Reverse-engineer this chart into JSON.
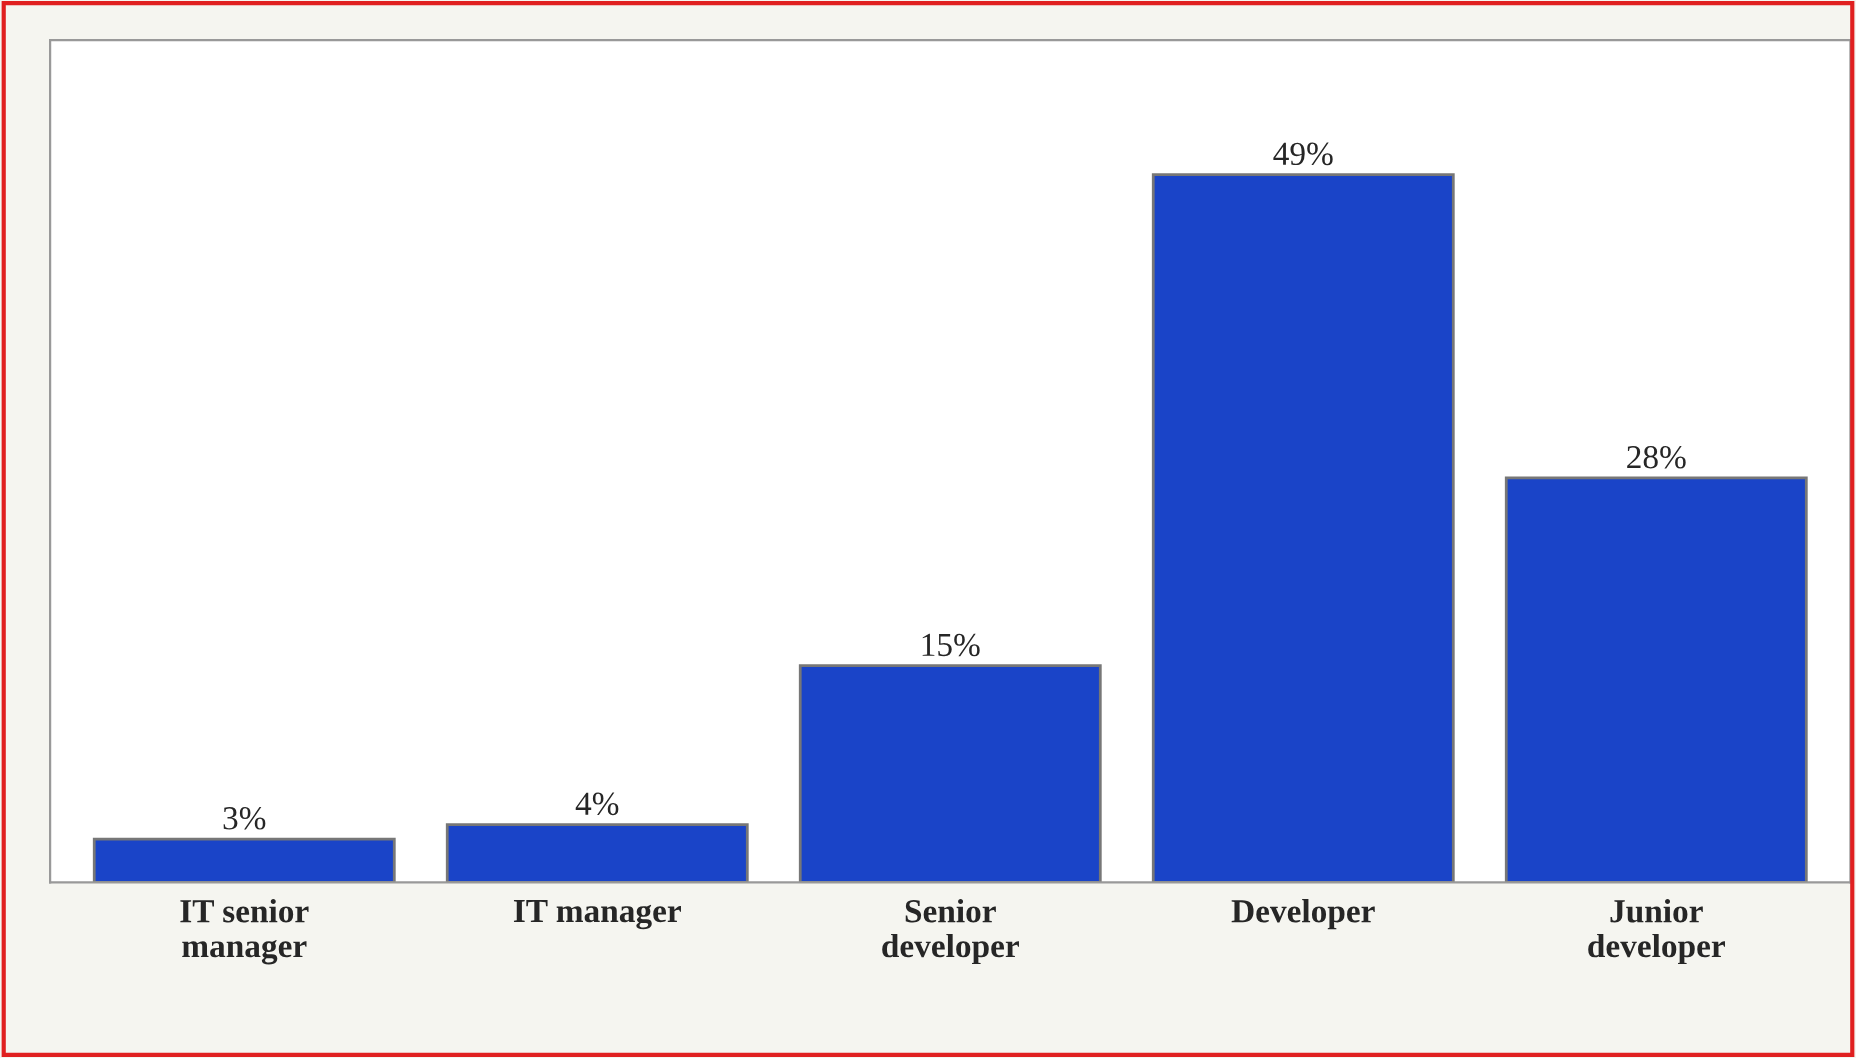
{
  "chart_data": {
    "type": "bar",
    "categories": [
      "IT senior\nmanager",
      "IT manager",
      "Senior\ndeveloper",
      "Developer",
      "Junior\ndeveloper"
    ],
    "values": [
      3,
      4,
      15,
      49,
      28
    ],
    "value_labels": [
      "3%",
      "4%",
      "15%",
      "49%",
      "28%"
    ],
    "color": "#1a44c8",
    "grid": false,
    "legend": false
  }
}
